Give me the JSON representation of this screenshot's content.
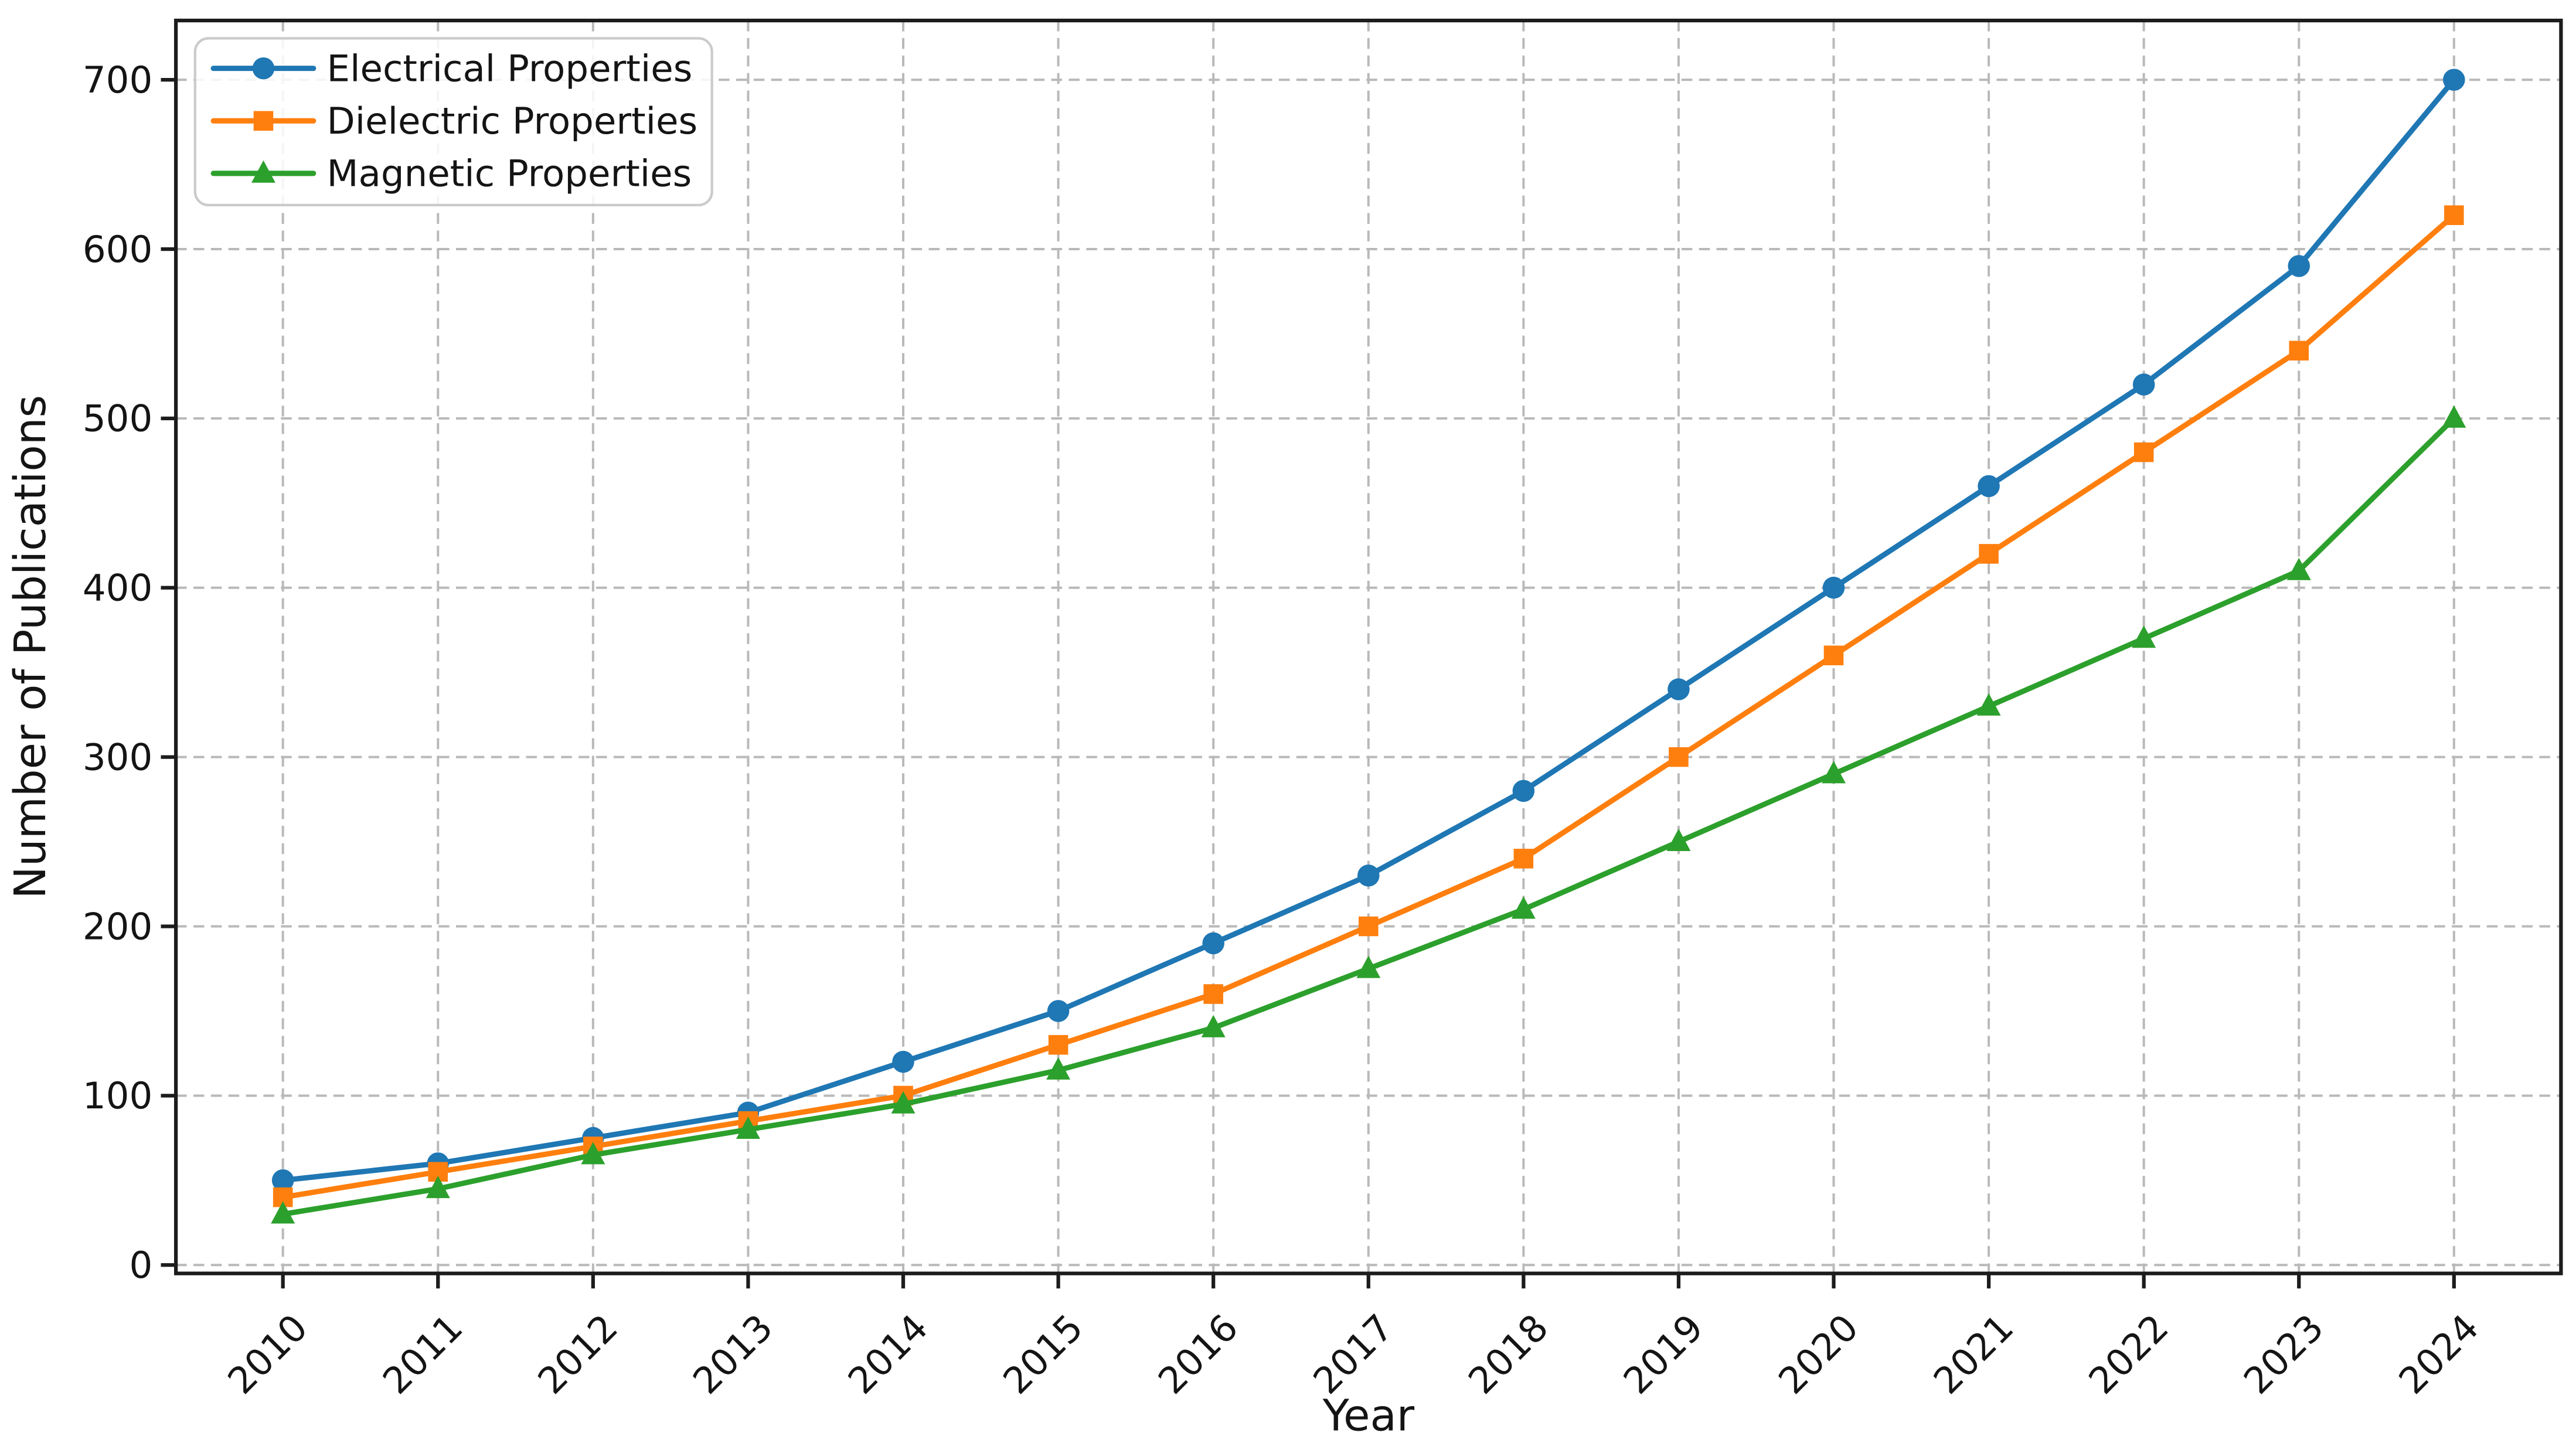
{
  "chart_data": {
    "type": "line",
    "title": "",
    "xlabel": "Year",
    "ylabel": "Number of Publications",
    "categories": [
      "2010",
      "2011",
      "2012",
      "2013",
      "2014",
      "2015",
      "2016",
      "2017",
      "2018",
      "2019",
      "2020",
      "2021",
      "2022",
      "2023",
      "2024"
    ],
    "series": [
      {
        "name": "Electrical Properties",
        "marker": "circle",
        "color": "#1f77b4",
        "values": [
          50,
          60,
          75,
          90,
          120,
          150,
          190,
          230,
          280,
          340,
          400,
          460,
          520,
          590,
          700
        ]
      },
      {
        "name": "Dielectric Properties",
        "marker": "square",
        "color": "#ff7f0e",
        "values": [
          40,
          55,
          70,
          85,
          100,
          130,
          160,
          200,
          240,
          300,
          360,
          420,
          480,
          540,
          620
        ]
      },
      {
        "name": "Magnetic Properties",
        "marker": "triangle",
        "color": "#2ca02c",
        "values": [
          30,
          45,
          65,
          80,
          95,
          115,
          140,
          175,
          210,
          250,
          290,
          330,
          370,
          410,
          500
        ]
      }
    ],
    "y_ticks": [
      0,
      100,
      200,
      300,
      400,
      500,
      600,
      700
    ],
    "ylim": [
      -5,
      735
    ],
    "xlim_padding": 0.69,
    "x_tick_rotation_deg": 45,
    "grid": "dashed-both-axes",
    "legend_position": "upper-left",
    "colors": {
      "grid": "#b9b9b9",
      "axis": "#1c1c1c",
      "text": "#141414",
      "legend_border": "#cbcbcb",
      "legend_background": "rgba(255,255,255,0.85)",
      "background": "#ffffff"
    }
  }
}
